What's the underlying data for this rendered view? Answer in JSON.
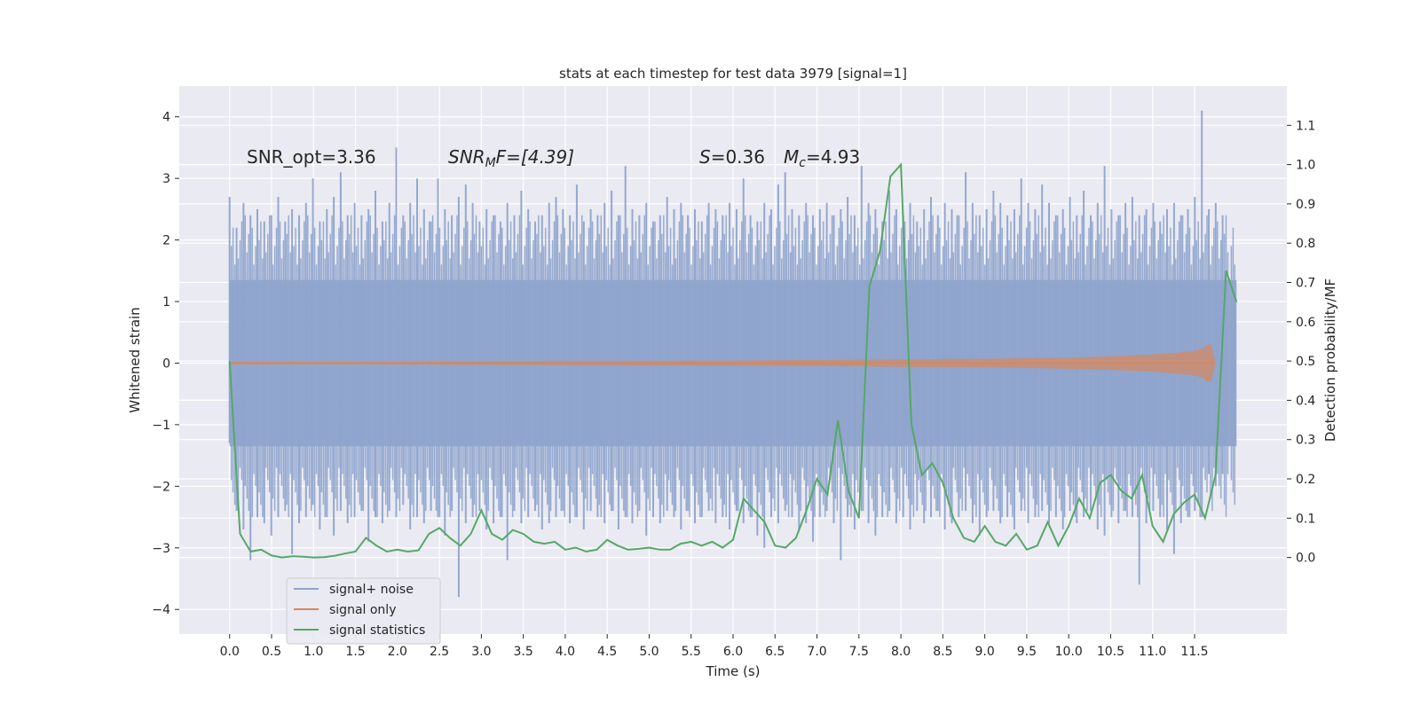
{
  "chart_data": {
    "type": "line",
    "title": "stats at each timestep for test data 3979 [signal=1]",
    "xlabel": "Time (s)",
    "ylabel_left": "Whitened strain",
    "ylabel_right": "Detection probability/MF",
    "xlim": [
      -0.6,
      12.6
    ],
    "ylim_left": [
      -4.4,
      4.5
    ],
    "ylim_right": [
      -0.195,
      1.2
    ],
    "xticks": [
      "0.0",
      "0.5",
      "1.0",
      "1.5",
      "2.0",
      "2.5",
      "3.0",
      "3.5",
      "4.0",
      "4.5",
      "5.0",
      "5.5",
      "6.0",
      "6.5",
      "7.0",
      "7.5",
      "8.0",
      "8.5",
      "9.0",
      "9.5",
      "10.0",
      "10.5",
      "11.0",
      "11.5"
    ],
    "yticks_left": [
      "4",
      "3",
      "2",
      "1",
      "0",
      "−1",
      "−2",
      "−3",
      "−4"
    ],
    "yticks_right": [
      "1.1",
      "1.0",
      "0.9",
      "0.8",
      "0.7",
      "0.6",
      "0.5",
      "0.4",
      "0.3",
      "0.2",
      "0.1",
      "0.0"
    ],
    "grid": true,
    "legend_position": "lower-left",
    "annotations": {
      "snr_opt": "SNR_opt=3.36",
      "snr_mf_italic": "SNR",
      "snr_mf_sub": "M",
      "snr_mf_rest": "F=[4.39]",
      "s_italic": "S",
      "s_rest": "=0.36",
      "mc_italic": "M",
      "mc_sub": "c",
      "mc_rest": "=4.93"
    },
    "series": [
      {
        "name": "signal+ noise",
        "axis": "left",
        "color": "#8fa4cc",
        "x_range": [
          0.0,
          12.0
        ],
        "envelope_upper": [
          2.7,
          2.2,
          2.6,
          2.4,
          2.5,
          2.3,
          2.4,
          2.7,
          2.3,
          2.5,
          2.4,
          2.6,
          3.0,
          2.3,
          2.5,
          2.7,
          3.1,
          2.4,
          2.6,
          2.4,
          2.5,
          2.8,
          2.3,
          2.6,
          3.5,
          2.4,
          2.6,
          3.0,
          2.5,
          2.3,
          3.0,
          2.5,
          2.4,
          2.7,
          2.9,
          2.6,
          2.3,
          2.5,
          2.4,
          2.3,
          2.6,
          2.4,
          2.8,
          2.5,
          2.3,
          2.4,
          2.6,
          2.7,
          2.5,
          2.4,
          2.9,
          2.3,
          2.5,
          2.4,
          2.6,
          2.8,
          2.4,
          3.2,
          2.5,
          2.4,
          2.6,
          2.3,
          2.4,
          2.7,
          2.5,
          2.6,
          2.4,
          2.5,
          2.3,
          2.6,
          2.5,
          2.4,
          2.6,
          2.5,
          3.0,
          2.4,
          2.3,
          2.6,
          2.5,
          2.9,
          3.1,
          2.5,
          2.4,
          2.6,
          2.4,
          2.5,
          2.6,
          2.4,
          2.5,
          2.7,
          2.4,
          3.2,
          2.6,
          2.5,
          2.3,
          2.8,
          2.5,
          2.4,
          2.6,
          2.3,
          2.5,
          2.7,
          2.4,
          2.6,
          2.5,
          2.4,
          3.1,
          2.6,
          2.4,
          2.5,
          2.8,
          2.6,
          2.4,
          2.5,
          3.0,
          2.6,
          2.5,
          2.9,
          2.6,
          2.4,
          2.5,
          2.7,
          2.4,
          2.8,
          2.4,
          2.6,
          3.2,
          2.5,
          2.4,
          2.6,
          2.7,
          2.4,
          2.5,
          2.6,
          2.3,
          2.5,
          2.6,
          2.4,
          2.5,
          2.7,
          4.1,
          2.5,
          2.6,
          2.4,
          2.5,
          2.3
        ],
        "envelope_lower": [
          -1.3,
          -2.4,
          -2.7,
          -3.2,
          -2.5,
          -2.6,
          -2.8,
          -2.5,
          -2.4,
          -3.1,
          -2.6,
          -2.5,
          -2.3,
          -2.7,
          -2.5,
          -2.8,
          -2.4,
          -2.6,
          -2.5,
          -2.4,
          -2.9,
          -2.5,
          -2.6,
          -2.4,
          -2.5,
          -2.3,
          -2.7,
          -2.5,
          -2.6,
          -2.4,
          -2.5,
          -2.8,
          -2.4,
          -3.8,
          -2.6,
          -2.5,
          -2.4,
          -2.7,
          -2.6,
          -2.5,
          -3.2,
          -2.4,
          -2.6,
          -2.5,
          -2.4,
          -2.7,
          -2.6,
          -2.5,
          -2.4,
          -2.6,
          -2.5,
          -2.7,
          -2.4,
          -2.5,
          -2.6,
          -2.4,
          -2.7,
          -2.5,
          -2.6,
          -2.4,
          -2.8,
          -2.5,
          -2.6,
          -2.4,
          -2.5,
          -2.7,
          -2.4,
          -2.6,
          -2.5,
          -2.4,
          -2.6,
          -2.5,
          -2.7,
          -2.4,
          -2.6,
          -2.5,
          -2.8,
          -3.0,
          -2.5,
          -2.6,
          -2.4,
          -2.5,
          -2.7,
          -2.6,
          -2.9,
          -2.5,
          -2.4,
          -2.6,
          -3.2,
          -2.5,
          -2.7,
          -2.4,
          -2.6,
          -2.8,
          -2.5,
          -2.4,
          -2.6,
          -2.5,
          -2.7,
          -2.4,
          -2.6,
          -2.5,
          -2.4,
          -2.7,
          -2.6,
          -2.5,
          -2.4,
          -2.6,
          -2.8,
          -2.5,
          -2.4,
          -2.6,
          -2.5,
          -2.7,
          -2.4,
          -2.6,
          -2.5,
          -2.4,
          -2.6,
          -2.5,
          -2.7,
          -2.4,
          -2.6,
          -2.5,
          -2.4,
          -2.7,
          -2.8,
          -2.5,
          -2.6,
          -2.4,
          -2.5,
          -3.6,
          -2.6,
          -2.4,
          -2.5,
          -2.7,
          -3.1,
          -2.6,
          -2.5,
          -2.4,
          -2.5,
          -1.8,
          -2.0,
          -1.8
        ]
      },
      {
        "name": "signal only",
        "axis": "left",
        "color": "#dd8452",
        "x": [
          0.0,
          2.0,
          4.0,
          6.0,
          8.0,
          9.0,
          10.0,
          10.5,
          11.0,
          11.3,
          11.5,
          11.6,
          11.65,
          11.7,
          11.75
        ],
        "amplitude": [
          0.02,
          0.02,
          0.03,
          0.04,
          0.06,
          0.07,
          0.09,
          0.11,
          0.14,
          0.17,
          0.2,
          0.24,
          0.3,
          0.3,
          0.0
        ]
      },
      {
        "name": "signal statistics",
        "axis": "right",
        "color": "#55a868",
        "x": [
          0.0,
          0.125,
          0.25,
          0.375,
          0.5,
          0.625,
          0.75,
          0.875,
          1.0,
          1.125,
          1.25,
          1.375,
          1.5,
          1.625,
          1.75,
          1.875,
          2.0,
          2.125,
          2.25,
          2.375,
          2.5,
          2.625,
          2.75,
          2.875,
          3.0,
          3.125,
          3.25,
          3.375,
          3.5,
          3.625,
          3.75,
          3.875,
          4.0,
          4.125,
          4.25,
          4.375,
          4.5,
          4.625,
          4.75,
          4.875,
          5.0,
          5.125,
          5.25,
          5.375,
          5.5,
          5.625,
          5.75,
          5.875,
          6.0,
          6.125,
          6.25,
          6.375,
          6.5,
          6.625,
          6.75,
          6.875,
          7.0,
          7.125,
          7.25,
          7.375,
          7.5,
          7.625,
          7.75,
          7.875,
          8.0,
          8.125,
          8.25,
          8.375,
          8.5,
          8.625,
          8.75,
          8.875,
          9.0,
          9.125,
          9.25,
          9.375,
          9.5,
          9.625,
          9.75,
          9.875,
          10.0,
          10.125,
          10.25,
          10.375,
          10.5,
          10.625,
          10.75,
          10.875,
          11.0,
          11.125,
          11.25,
          11.375,
          11.5,
          11.625,
          11.75,
          11.875,
          12.0
        ],
        "y": [
          0.5,
          0.06,
          0.015,
          0.02,
          0.005,
          0.0,
          0.003,
          0.002,
          0.0,
          0.001,
          0.004,
          0.01,
          0.015,
          0.05,
          0.03,
          0.015,
          0.02,
          0.015,
          0.018,
          0.06,
          0.075,
          0.05,
          0.03,
          0.06,
          0.12,
          0.06,
          0.045,
          0.07,
          0.06,
          0.04,
          0.035,
          0.04,
          0.02,
          0.025,
          0.015,
          0.02,
          0.045,
          0.03,
          0.02,
          0.022,
          0.025,
          0.02,
          0.02,
          0.035,
          0.04,
          0.03,
          0.04,
          0.025,
          0.045,
          0.15,
          0.12,
          0.09,
          0.03,
          0.025,
          0.05,
          0.12,
          0.2,
          0.16,
          0.35,
          0.17,
          0.1,
          0.69,
          0.78,
          0.97,
          1.0,
          0.34,
          0.21,
          0.24,
          0.19,
          0.1,
          0.05,
          0.04,
          0.08,
          0.04,
          0.03,
          0.06,
          0.02,
          0.03,
          0.09,
          0.03,
          0.08,
          0.15,
          0.1,
          0.19,
          0.21,
          0.17,
          0.15,
          0.21,
          0.08,
          0.04,
          0.11,
          0.14,
          0.16,
          0.1,
          0.21,
          0.73,
          0.65
        ]
      }
    ]
  }
}
